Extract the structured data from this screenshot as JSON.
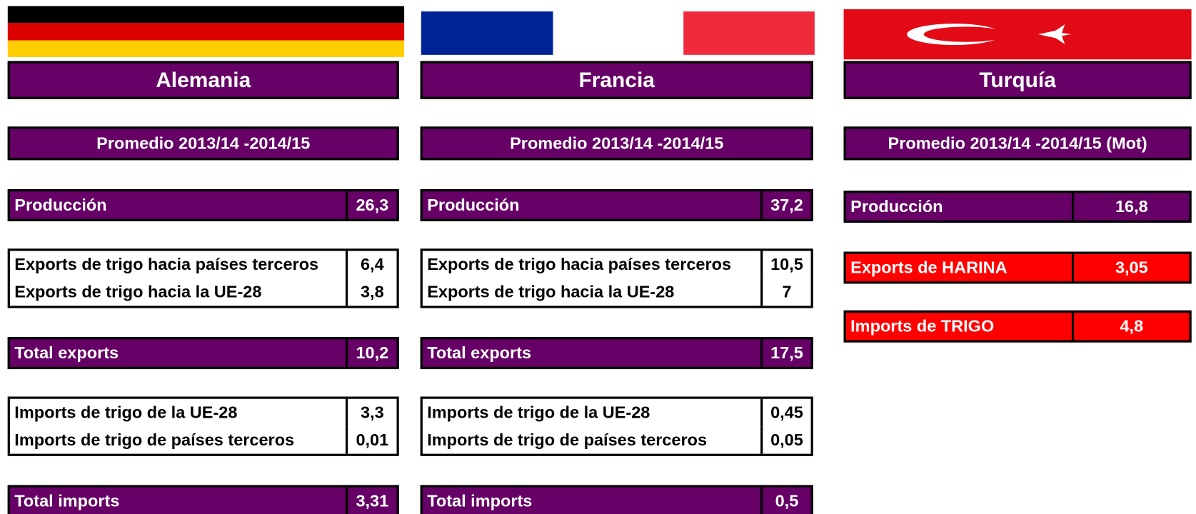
{
  "columns": [
    {
      "name": "Alemania",
      "period": "Promedio 2013/14 -2014/15",
      "groups": [
        {
          "style": "purple",
          "rows": [
            {
              "label": "Producción",
              "value": "26,3"
            }
          ]
        },
        {
          "style": "white",
          "rows": [
            {
              "label": "Exports de trigo hacia países terceros",
              "value": "6,4"
            },
            {
              "label": "Exports de trigo hacia la UE-28",
              "value": "3,8"
            }
          ]
        },
        {
          "style": "purple",
          "rows": [
            {
              "label": "Total exports",
              "value": "10,2"
            }
          ]
        },
        {
          "style": "white",
          "rows": [
            {
              "label": "Imports de trigo de la UE-28",
              "value": "3,3"
            },
            {
              "label": "Imports de trigo de países terceros",
              "value": "0,01"
            }
          ]
        },
        {
          "style": "purple",
          "rows": [
            {
              "label": "Total imports",
              "value": "3,31"
            }
          ]
        }
      ]
    },
    {
      "name": "Francia",
      "period": "Promedio 2013/14 -2014/15",
      "groups": [
        {
          "style": "purple",
          "rows": [
            {
              "label": "Producción",
              "value": "37,2"
            }
          ]
        },
        {
          "style": "white",
          "rows": [
            {
              "label": "Exports de trigo hacia países terceros",
              "value": "10,5"
            },
            {
              "label": "Exports de trigo hacia la UE-28",
              "value": "7"
            }
          ]
        },
        {
          "style": "purple",
          "rows": [
            {
              "label": "Total exports",
              "value": "17,5"
            }
          ]
        },
        {
          "style": "white",
          "rows": [
            {
              "label": "Imports de trigo de la UE-28",
              "value": "0,45"
            },
            {
              "label": "Imports de trigo de países terceros",
              "value": "0,05"
            }
          ]
        },
        {
          "style": "purple",
          "rows": [
            {
              "label": "Total imports",
              "value": "0,5"
            }
          ]
        }
      ]
    },
    {
      "name": "Turquía",
      "period": "Promedio 2013/14 -2014/15 (Mot)",
      "groups": [
        {
          "style": "purple",
          "rows": [
            {
              "label": "Producción",
              "value": "16,8"
            }
          ]
        },
        {
          "style": "red",
          "rows": [
            {
              "label": "Exports de HARINA",
              "value": "3,05"
            }
          ]
        },
        {
          "style": "red",
          "rows": [
            {
              "label": "Imports de TRIGO",
              "value": "4,8"
            }
          ]
        }
      ]
    }
  ]
}
